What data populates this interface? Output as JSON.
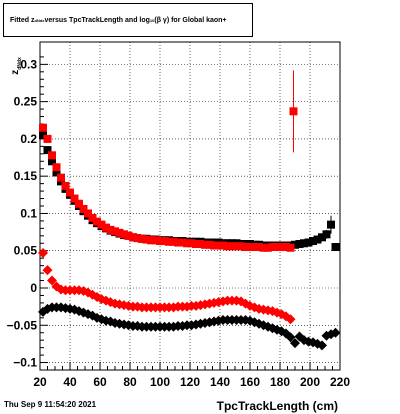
{
  "title_parts": {
    "a": "Fitted  z",
    "a_sub": "dNdx",
    "b": "  versus TpcTrackLength and log",
    "b_sub": "10",
    "c": "(β  γ) for Global kaon+"
  },
  "timestamp": "Thu Sep  9 11:54:20 2021",
  "chart_data": {
    "type": "scatter",
    "title": "Fitted  zdNdx  versus TpcTrackLength and log10(β γ) for Global kaon+",
    "xlabel": "TpcTrackLength (cm)",
    "ylabel": "z",
    "ylabel_sub": "dNdx",
    "xlim": [
      20,
      220
    ],
    "ylim": [
      -0.11,
      0.33
    ],
    "grid": true,
    "x_ticks": [
      20,
      40,
      60,
      80,
      100,
      120,
      140,
      160,
      180,
      200,
      220
    ],
    "x_tick_labels": [
      "20",
      "40",
      "60",
      "80",
      "100",
      "120",
      "140",
      "160",
      "180",
      "200",
      "220"
    ],
    "y_ticks": [
      -0.1,
      -0.05,
      0,
      0.05,
      0.1,
      0.15,
      0.2,
      0.25,
      0.3
    ],
    "y_tick_labels": [
      "−0.1",
      "−0.05",
      "0",
      "0.05",
      "0.1",
      "0.15",
      "0.2",
      "0.25",
      "0.3"
    ],
    "series": [
      {
        "marker": "square",
        "color": "#000000",
        "points": [
          [
            22,
            0.205
          ],
          [
            25,
            0.185
          ],
          [
            28,
            0.17
          ],
          [
            31,
            0.155
          ],
          [
            34,
            0.143
          ],
          [
            37,
            0.133
          ],
          [
            40,
            0.125
          ],
          [
            43,
            0.117
          ],
          [
            46,
            0.11
          ],
          [
            49,
            0.103
          ],
          [
            52,
            0.097
          ],
          [
            55,
            0.091
          ],
          [
            58,
            0.087
          ],
          [
            61,
            0.083
          ],
          [
            64,
            0.08
          ],
          [
            67,
            0.077
          ],
          [
            70,
            0.075
          ],
          [
            73,
            0.073
          ],
          [
            76,
            0.071
          ],
          [
            79,
            0.07
          ],
          [
            82,
            0.068
          ],
          [
            85,
            0.067
          ],
          [
            88,
            0.066
          ],
          [
            91,
            0.066
          ],
          [
            94,
            0.065
          ],
          [
            97,
            0.065
          ],
          [
            100,
            0.064
          ],
          [
            103,
            0.064
          ],
          [
            106,
            0.064
          ],
          [
            109,
            0.063
          ],
          [
            112,
            0.063
          ],
          [
            115,
            0.063
          ],
          [
            118,
            0.062
          ],
          [
            121,
            0.062
          ],
          [
            124,
            0.062
          ],
          [
            127,
            0.062
          ],
          [
            130,
            0.061
          ],
          [
            133,
            0.061
          ],
          [
            136,
            0.061
          ],
          [
            139,
            0.061
          ],
          [
            142,
            0.06
          ],
          [
            145,
            0.06
          ],
          [
            148,
            0.06
          ],
          [
            151,
            0.06
          ],
          [
            154,
            0.059
          ],
          [
            157,
            0.059
          ],
          [
            160,
            0.059
          ],
          [
            163,
            0.058
          ],
          [
            166,
            0.058
          ],
          [
            169,
            0.057
          ],
          [
            172,
            0.057
          ],
          [
            175,
            0.057
          ],
          [
            178,
            0.057
          ],
          [
            181,
            0.057
          ],
          [
            184,
            0.057
          ],
          [
            187,
            0.057
          ],
          [
            190,
            0.058
          ],
          [
            193,
            0.059
          ],
          [
            196,
            0.06
          ],
          [
            199,
            0.061
          ],
          [
            202,
            0.063
          ],
          [
            205,
            0.065
          ],
          [
            208,
            0.068
          ],
          [
            211,
            0.072
          ],
          [
            214,
            0.085
          ],
          [
            217,
            0.055
          ]
        ],
        "errors": {
          "214": 0.012,
          "211": 0.006,
          "208": 0.004
        }
      },
      {
        "marker": "square",
        "color": "#ff0000",
        "points": [
          [
            22,
            0.215
          ],
          [
            25,
            0.2
          ],
          [
            28,
            0.178
          ],
          [
            31,
            0.162
          ],
          [
            34,
            0.148
          ],
          [
            37,
            0.137
          ],
          [
            40,
            0.128
          ],
          [
            43,
            0.12
          ],
          [
            46,
            0.113
          ],
          [
            49,
            0.106
          ],
          [
            52,
            0.1
          ],
          [
            55,
            0.094
          ],
          [
            58,
            0.089
          ],
          [
            61,
            0.085
          ],
          [
            64,
            0.081
          ],
          [
            67,
            0.078
          ],
          [
            70,
            0.076
          ],
          [
            73,
            0.074
          ],
          [
            76,
            0.072
          ],
          [
            79,
            0.07
          ],
          [
            82,
            0.068
          ],
          [
            85,
            0.067
          ],
          [
            88,
            0.066
          ],
          [
            91,
            0.065
          ],
          [
            94,
            0.064
          ],
          [
            97,
            0.064
          ],
          [
            100,
            0.063
          ],
          [
            103,
            0.063
          ],
          [
            106,
            0.062
          ],
          [
            109,
            0.062
          ],
          [
            112,
            0.061
          ],
          [
            115,
            0.061
          ],
          [
            118,
            0.06
          ],
          [
            121,
            0.06
          ],
          [
            124,
            0.059
          ],
          [
            127,
            0.059
          ],
          [
            130,
            0.058
          ],
          [
            133,
            0.058
          ],
          [
            136,
            0.057
          ],
          [
            139,
            0.057
          ],
          [
            142,
            0.057
          ],
          [
            145,
            0.056
          ],
          [
            148,
            0.056
          ],
          [
            151,
            0.056
          ],
          [
            154,
            0.056
          ],
          [
            157,
            0.055
          ],
          [
            160,
            0.055
          ],
          [
            163,
            0.055
          ],
          [
            166,
            0.055
          ],
          [
            169,
            0.054
          ],
          [
            172,
            0.054
          ],
          [
            175,
            0.055
          ],
          [
            178,
            0.055
          ],
          [
            181,
            0.055
          ],
          [
            184,
            0.055
          ],
          [
            187,
            0.054
          ],
          [
            189,
            0.237
          ]
        ],
        "errors": {
          "189": 0.055
        }
      },
      {
        "marker": "diamond",
        "color": "#ff0000",
        "points": [
          [
            22,
            0.047
          ],
          [
            25,
            0.024
          ],
          [
            28,
            0.01
          ],
          [
            31,
            0.002
          ],
          [
            34,
            -0.002
          ],
          [
            37,
            -0.003
          ],
          [
            40,
            -0.003
          ],
          [
            43,
            -0.003
          ],
          [
            46,
            -0.003
          ],
          [
            49,
            -0.004
          ],
          [
            52,
            -0.006
          ],
          [
            55,
            -0.009
          ],
          [
            58,
            -0.012
          ],
          [
            61,
            -0.015
          ],
          [
            64,
            -0.017
          ],
          [
            67,
            -0.019
          ],
          [
            70,
            -0.021
          ],
          [
            73,
            -0.022
          ],
          [
            76,
            -0.023
          ],
          [
            79,
            -0.024
          ],
          [
            82,
            -0.025
          ],
          [
            85,
            -0.025
          ],
          [
            88,
            -0.026
          ],
          [
            91,
            -0.026
          ],
          [
            94,
            -0.026
          ],
          [
            97,
            -0.026
          ],
          [
            100,
            -0.026
          ],
          [
            103,
            -0.026
          ],
          [
            106,
            -0.026
          ],
          [
            109,
            -0.026
          ],
          [
            112,
            -0.025
          ],
          [
            115,
            -0.025
          ],
          [
            118,
            -0.025
          ],
          [
            121,
            -0.024
          ],
          [
            124,
            -0.024
          ],
          [
            127,
            -0.023
          ],
          [
            130,
            -0.022
          ],
          [
            133,
            -0.021
          ],
          [
            136,
            -0.02
          ],
          [
            139,
            -0.019
          ],
          [
            142,
            -0.018
          ],
          [
            145,
            -0.017
          ],
          [
            148,
            -0.017
          ],
          [
            151,
            -0.017
          ],
          [
            154,
            -0.018
          ],
          [
            157,
            -0.021
          ],
          [
            160,
            -0.024
          ],
          [
            163,
            -0.026
          ],
          [
            166,
            -0.028
          ],
          [
            169,
            -0.029
          ],
          [
            172,
            -0.03
          ],
          [
            175,
            -0.031
          ],
          [
            178,
            -0.033
          ],
          [
            181,
            -0.035
          ],
          [
            184,
            -0.038
          ],
          [
            187,
            -0.042
          ]
        ]
      },
      {
        "marker": "diamond",
        "color": "#000000",
        "points": [
          [
            22,
            -0.032
          ],
          [
            25,
            -0.028
          ],
          [
            28,
            -0.026
          ],
          [
            31,
            -0.026
          ],
          [
            34,
            -0.026
          ],
          [
            37,
            -0.027
          ],
          [
            40,
            -0.028
          ],
          [
            43,
            -0.029
          ],
          [
            46,
            -0.031
          ],
          [
            49,
            -0.033
          ],
          [
            52,
            -0.035
          ],
          [
            55,
            -0.037
          ],
          [
            58,
            -0.04
          ],
          [
            61,
            -0.042
          ],
          [
            64,
            -0.044
          ],
          [
            67,
            -0.045
          ],
          [
            70,
            -0.047
          ],
          [
            73,
            -0.048
          ],
          [
            76,
            -0.049
          ],
          [
            79,
            -0.05
          ],
          [
            82,
            -0.051
          ],
          [
            85,
            -0.051
          ],
          [
            88,
            -0.052
          ],
          [
            91,
            -0.052
          ],
          [
            94,
            -0.052
          ],
          [
            97,
            -0.052
          ],
          [
            100,
            -0.052
          ],
          [
            103,
            -0.052
          ],
          [
            106,
            -0.052
          ],
          [
            109,
            -0.052
          ],
          [
            112,
            -0.051
          ],
          [
            115,
            -0.051
          ],
          [
            118,
            -0.05
          ],
          [
            121,
            -0.05
          ],
          [
            124,
            -0.049
          ],
          [
            127,
            -0.048
          ],
          [
            130,
            -0.047
          ],
          [
            133,
            -0.046
          ],
          [
            136,
            -0.045
          ],
          [
            139,
            -0.044
          ],
          [
            142,
            -0.043
          ],
          [
            145,
            -0.043
          ],
          [
            148,
            -0.043
          ],
          [
            151,
            -0.043
          ],
          [
            154,
            -0.043
          ],
          [
            157,
            -0.043
          ],
          [
            160,
            -0.044
          ],
          [
            163,
            -0.046
          ],
          [
            166,
            -0.048
          ],
          [
            169,
            -0.05
          ],
          [
            172,
            -0.052
          ],
          [
            175,
            -0.054
          ],
          [
            178,
            -0.056
          ],
          [
            181,
            -0.058
          ],
          [
            184,
            -0.061
          ],
          [
            187,
            -0.066
          ],
          [
            190,
            -0.074
          ],
          [
            193,
            -0.065
          ],
          [
            196,
            -0.07
          ],
          [
            199,
            -0.072
          ],
          [
            202,
            -0.073
          ],
          [
            205,
            -0.075
          ],
          [
            208,
            -0.077
          ],
          [
            211,
            -0.064
          ],
          [
            214,
            -0.062
          ],
          [
            217,
            -0.06
          ]
        ]
      }
    ]
  }
}
